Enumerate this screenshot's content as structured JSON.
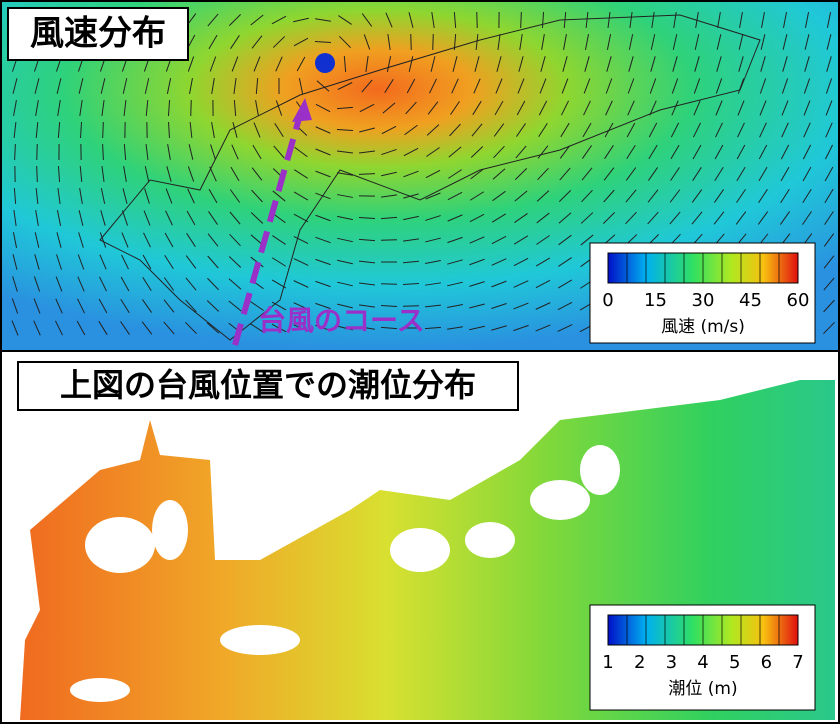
{
  "wind_panel": {
    "title": "風速分布",
    "course_label": "台風のコース",
    "colorbar": {
      "ticks": [
        0,
        15,
        30,
        45,
        60
      ],
      "label": "風速 (m/s)"
    }
  },
  "tide_panel": {
    "title": "上図の台風位置での潮位分布",
    "colorbar": {
      "ticks": [
        1,
        2,
        3,
        4,
        5,
        6,
        7
      ],
      "label": "潮位 (m)"
    }
  }
}
